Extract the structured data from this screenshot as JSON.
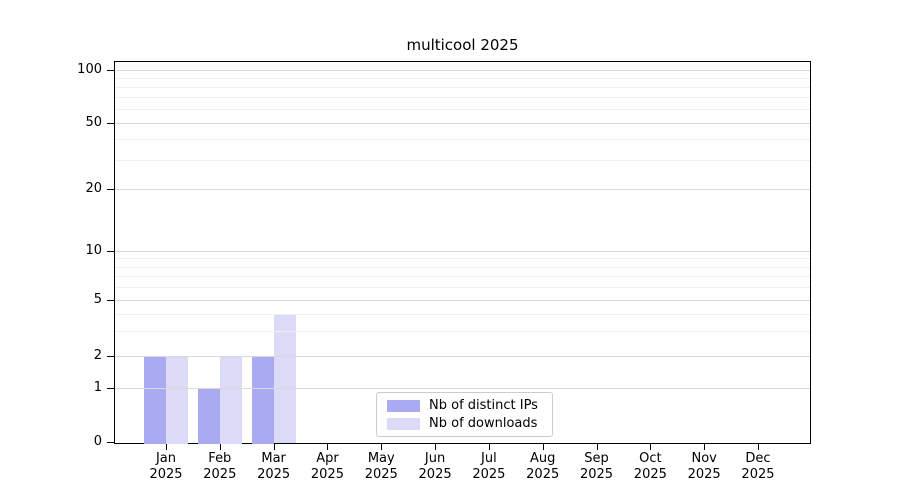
{
  "title": "multicool 2025",
  "colors": {
    "distinct_ips": "#aaaaf2",
    "downloads": "#dbdbf7",
    "grid_major": "#d9d9d9",
    "grid_minor": "#efefef",
    "axis": "#000000",
    "legend_border": "#cccccc",
    "text": "#000000"
  },
  "legend": {
    "items": [
      {
        "label": "Nb of distinct IPs",
        "color_key": "distinct_ips"
      },
      {
        "label": "Nb of downloads",
        "color_key": "downloads"
      }
    ]
  },
  "chart_data": {
    "type": "bar",
    "title": "multicool 2025",
    "categories": [
      "Jan",
      "Feb",
      "Mar",
      "Apr",
      "May",
      "Jun",
      "Jul",
      "Aug",
      "Sep",
      "Oct",
      "Nov",
      "Dec"
    ],
    "category_year": "2025",
    "series": [
      {
        "name": "Nb of distinct IPs",
        "color_key": "distinct_ips",
        "values": [
          2,
          1,
          2,
          0,
          0,
          0,
          0,
          0,
          0,
          0,
          0,
          0
        ]
      },
      {
        "name": "Nb of downloads",
        "color_key": "downloads",
        "values": [
          2,
          2,
          4,
          0,
          0,
          0,
          0,
          0,
          0,
          0,
          0,
          0
        ]
      }
    ],
    "yscale": "symlog",
    "yticks": [
      0,
      1,
      2,
      5,
      10,
      20,
      50,
      100
    ],
    "yminor": [
      3,
      4,
      6,
      7,
      8,
      9,
      30,
      40,
      60,
      70,
      80,
      90
    ],
    "ylim": [
      0,
      115
    ],
    "xlabel": "",
    "ylabel": "",
    "grid": true,
    "legend_position": "bottom-center"
  }
}
